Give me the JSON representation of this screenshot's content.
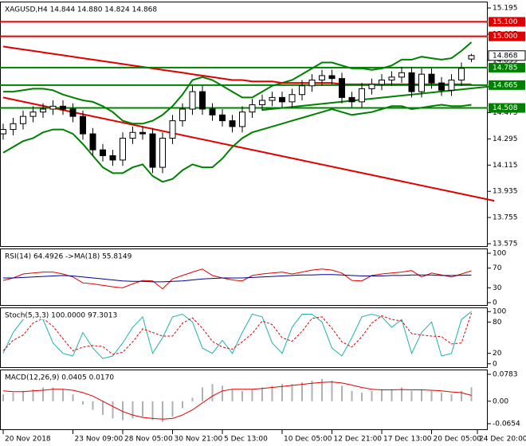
{
  "chart_data": [
    {
      "type": "candlestick",
      "title": "XAGUSD,H4  14.844 14.880 14.824 14.868",
      "open": [
        14.33,
        14.36,
        14.4,
        14.45,
        14.48,
        14.5,
        14.52,
        14.5,
        14.45,
        14.33,
        14.22,
        14.18,
        14.15,
        14.3,
        14.34,
        14.33,
        14.1,
        14.3,
        14.42,
        14.5,
        14.62,
        14.5,
        14.46,
        14.42,
        14.38,
        14.48,
        14.53,
        14.56,
        14.58,
        14.55,
        14.6,
        14.66,
        14.7,
        14.73,
        14.71,
        14.58,
        14.55,
        14.64,
        14.67,
        14.7,
        14.72,
        14.75,
        14.62,
        14.74,
        14.68,
        14.63,
        14.7,
        14.844
      ],
      "high": [
        14.4,
        14.44,
        14.49,
        14.52,
        14.54,
        14.56,
        14.56,
        14.54,
        14.49,
        14.37,
        14.26,
        14.22,
        14.34,
        14.38,
        14.38,
        14.37,
        14.34,
        14.46,
        14.54,
        14.66,
        14.66,
        14.54,
        14.5,
        14.46,
        14.52,
        14.57,
        14.6,
        14.62,
        14.62,
        14.64,
        14.7,
        14.74,
        14.77,
        14.77,
        14.75,
        14.62,
        14.68,
        14.71,
        14.74,
        14.76,
        14.79,
        14.79,
        14.78,
        14.78,
        14.72,
        14.74,
        14.82,
        14.88
      ],
      "low": [
        14.29,
        14.32,
        14.36,
        14.41,
        14.44,
        14.46,
        14.46,
        14.41,
        14.29,
        14.18,
        14.14,
        14.11,
        14.11,
        14.26,
        14.29,
        14.06,
        14.06,
        14.26,
        14.38,
        14.46,
        14.46,
        14.42,
        14.38,
        14.34,
        14.34,
        14.44,
        14.49,
        14.52,
        14.51,
        14.51,
        14.56,
        14.62,
        14.66,
        14.67,
        14.54,
        14.51,
        14.51,
        14.6,
        14.63,
        14.66,
        14.68,
        14.58,
        14.58,
        14.64,
        14.59,
        14.59,
        14.66,
        14.824
      ],
      "close": [
        14.36,
        14.4,
        14.45,
        14.48,
        14.5,
        14.52,
        14.5,
        14.45,
        14.33,
        14.22,
        14.18,
        14.15,
        14.3,
        14.34,
        14.33,
        14.1,
        14.3,
        14.42,
        14.5,
        14.62,
        14.5,
        14.46,
        14.42,
        14.38,
        14.48,
        14.53,
        14.56,
        14.58,
        14.55,
        14.6,
        14.66,
        14.7,
        14.73,
        14.71,
        14.58,
        14.55,
        14.64,
        14.67,
        14.7,
        14.72,
        14.75,
        14.62,
        14.74,
        14.68,
        14.63,
        14.7,
        14.78,
        14.868
      ],
      "overlays": [
        {
          "color": "#008000",
          "values": [
            14.62,
            14.62,
            14.63,
            14.64,
            14.64,
            14.63,
            14.6,
            14.58,
            14.56,
            14.55,
            14.52,
            14.48,
            14.42,
            14.4,
            14.4,
            14.42,
            14.46,
            14.52,
            14.6,
            14.7,
            14.72,
            14.7,
            14.66,
            14.62,
            14.58,
            14.58,
            14.62,
            14.66,
            14.68,
            14.7,
            14.74,
            14.78,
            14.82,
            14.82,
            14.8,
            14.78,
            14.78,
            14.77,
            14.78,
            14.8,
            14.84,
            14.84,
            14.86,
            14.85,
            14.84,
            14.85,
            14.9,
            14.96
          ]
        },
        {
          "color": "#008000",
          "values": [
            14.2,
            14.24,
            14.28,
            14.3,
            14.34,
            14.36,
            14.36,
            14.33,
            14.26,
            14.18,
            14.1,
            14.06,
            14.06,
            14.1,
            14.12,
            14.04,
            14.0,
            14.02,
            14.08,
            14.12,
            14.1,
            14.1,
            14.16,
            14.24,
            14.3,
            14.34,
            14.36,
            14.38,
            14.4,
            14.42,
            14.44,
            14.46,
            14.48,
            14.5,
            14.48,
            14.46,
            14.47,
            14.48,
            14.5,
            14.52,
            14.52,
            14.5,
            14.51,
            14.52,
            14.53,
            14.52,
            14.52,
            14.53
          ]
        },
        {
          "color": "#e00000",
          "values": [
            14.93,
            14.92,
            14.91,
            14.9,
            14.89,
            14.88,
            14.87,
            14.86,
            14.85,
            14.84,
            14.83,
            14.82,
            14.81,
            14.8,
            14.79,
            14.78,
            14.77,
            14.76,
            14.75,
            14.74,
            14.73,
            14.72,
            14.71,
            14.7,
            14.7,
            14.69,
            14.69,
            14.69,
            14.68,
            14.68,
            14.68,
            14.68,
            14.68,
            14.68,
            14.67,
            14.67,
            14.67,
            14.67,
            14.67,
            14.67,
            14.67,
            14.67,
            14.67,
            14.67,
            14.67,
            14.67,
            14.67,
            14.67
          ]
        }
      ],
      "trendlines": [
        {
          "color": "#e00000",
          "x": [
            0,
            49.3
          ],
          "y": [
            14.58,
            13.87
          ]
        },
        {
          "color": "#008000",
          "x": [
            26,
            49.3
          ],
          "y": [
            14.494,
            14.659
          ]
        }
      ],
      "levels": [
        {
          "value": 15.1,
          "label": "15.100",
          "color": "#e00000"
        },
        {
          "value": 15.0,
          "label": "15.000",
          "color": "#e00000"
        },
        {
          "value": 14.785,
          "color": "#008000"
        },
        {
          "value": 14.665,
          "color": "#008000"
        },
        {
          "value": 14.508,
          "color": "#008000"
        }
      ],
      "ylim": [
        13.553,
        15.239
      ],
      "yticks": [
        15.195,
        15.015,
        14.835,
        14.655,
        14.475,
        14.295,
        14.115,
        13.935,
        13.755,
        13.575
      ],
      "xticks": [
        {
          "value": 0,
          "label": "20 Nov 2018"
        },
        {
          "value": 7,
          "label": "23 Nov 09:00"
        },
        {
          "value": 12,
          "label": "28 Nov 05:00"
        },
        {
          "value": 17,
          "label": "30 Nov 21:00"
        },
        {
          "value": 22,
          "label": "5 Dec 13:00"
        },
        {
          "value": 28,
          "label": "10 Dec 05:00"
        },
        {
          "value": 33,
          "label": "12 Dec 21:00"
        },
        {
          "value": 38,
          "label": "17 Dec 13:00"
        },
        {
          "value": 43,
          "label": "20 Dec 05:00"
        },
        {
          "value": 47.6,
          "label": "24 Dec 20:00"
        }
      ]
    },
    {
      "type": "line",
      "title": "RSI(14) 64.4926 ->MA(18) 55.8149",
      "series": [
        {
          "color": "#e00000",
          "values": [
            45,
            50,
            58,
            60,
            62,
            62,
            58,
            52,
            40,
            38,
            35,
            32,
            30,
            38,
            45,
            44,
            28,
            48,
            55,
            62,
            68,
            55,
            50,
            46,
            44,
            55,
            58,
            60,
            62,
            58,
            62,
            66,
            68,
            66,
            60,
            45,
            44,
            55,
            58,
            60,
            62,
            65,
            52,
            60,
            56,
            52,
            58,
            64.49
          ]
        },
        {
          "color": "#00008b",
          "values": [
            50,
            50,
            51,
            52,
            53,
            54,
            55,
            54,
            52,
            50,
            48,
            46,
            44,
            43,
            43,
            42,
            42,
            43,
            44,
            46,
            48,
            49,
            50,
            50,
            50,
            51,
            52,
            53,
            54,
            55,
            56,
            56,
            57,
            57,
            56,
            55,
            54,
            54,
            54,
            55,
            55,
            56,
            56,
            56,
            55,
            55,
            55.5,
            55.8
          ]
        }
      ],
      "ylim": [
        -6.5,
        109.7
      ],
      "yticks": [
        100,
        70,
        30,
        0
      ]
    },
    {
      "type": "line",
      "title": "Stoch(5,3,3) 100.0000 97.3013",
      "series": [
        {
          "color": "#20b2aa",
          "values": [
            20,
            60,
            85,
            90,
            85,
            40,
            20,
            15,
            60,
            30,
            10,
            15,
            40,
            70,
            90,
            20,
            50,
            90,
            95,
            80,
            30,
            20,
            45,
            20,
            60,
            95,
            90,
            40,
            20,
            70,
            95,
            95,
            80,
            30,
            15,
            50,
            90,
            95,
            90,
            70,
            85,
            20,
            60,
            80,
            15,
            20,
            85,
            100
          ]
        },
        {
          "color": "#e00000",
          "dashed": true,
          "values": [
            25,
            45,
            55,
            78,
            87,
            72,
            48,
            25,
            32,
            35,
            33,
            18,
            22,
            42,
            67,
            60,
            53,
            53,
            78,
            88,
            68,
            43,
            32,
            28,
            42,
            58,
            82,
            75,
            50,
            43,
            62,
            87,
            90,
            68,
            42,
            32,
            52,
            78,
            92,
            85,
            82,
            58,
            55,
            53,
            52,
            38,
            40,
            97.3
          ]
        }
      ],
      "ylim": [
        -8,
        108
      ],
      "yticks": [
        100,
        80,
        20,
        0
      ]
    },
    {
      "type": "bar",
      "title": "MACD(12,26,9) 0.0405 0.0170",
      "color": "#b0b0b0",
      "values": [
        0.02,
        0.025,
        0.03,
        0.035,
        0.04,
        0.04,
        0.035,
        0.02,
        -0.01,
        -0.025,
        -0.04,
        -0.05,
        -0.055,
        -0.05,
        -0.045,
        -0.055,
        -0.06,
        -0.045,
        -0.02,
        0.01,
        0.04,
        0.05,
        0.045,
        0.035,
        0.03,
        0.035,
        0.04,
        0.045,
        0.05,
        0.05,
        0.055,
        0.06,
        0.065,
        0.06,
        0.045,
        0.03,
        0.025,
        0.03,
        0.035,
        0.035,
        0.04,
        0.03,
        0.035,
        0.03,
        0.025,
        0.02,
        0.03,
        0.0405
      ],
      "series": [
        {
          "color": "#e00000",
          "values": [
            0.03,
            0.028,
            0.028,
            0.03,
            0.032,
            0.035,
            0.035,
            0.032,
            0.025,
            0.015,
            0.0,
            -0.015,
            -0.03,
            -0.04,
            -0.047,
            -0.05,
            -0.052,
            -0.05,
            -0.04,
            -0.025,
            -0.005,
            0.015,
            0.03,
            0.035,
            0.035,
            0.035,
            0.037,
            0.04,
            0.043,
            0.046,
            0.049,
            0.052,
            0.055,
            0.056,
            0.053,
            0.047,
            0.04,
            0.035,
            0.033,
            0.033,
            0.034,
            0.033,
            0.033,
            0.032,
            0.03,
            0.027,
            0.025,
            0.017
          ]
        }
      ],
      "ylim": [
        -0.0839,
        0.0922
      ],
      "yticks": [
        0.0783,
        {
          "value": 0,
          "label": "0.00"
        },
        -0.0654
      ]
    }
  ]
}
